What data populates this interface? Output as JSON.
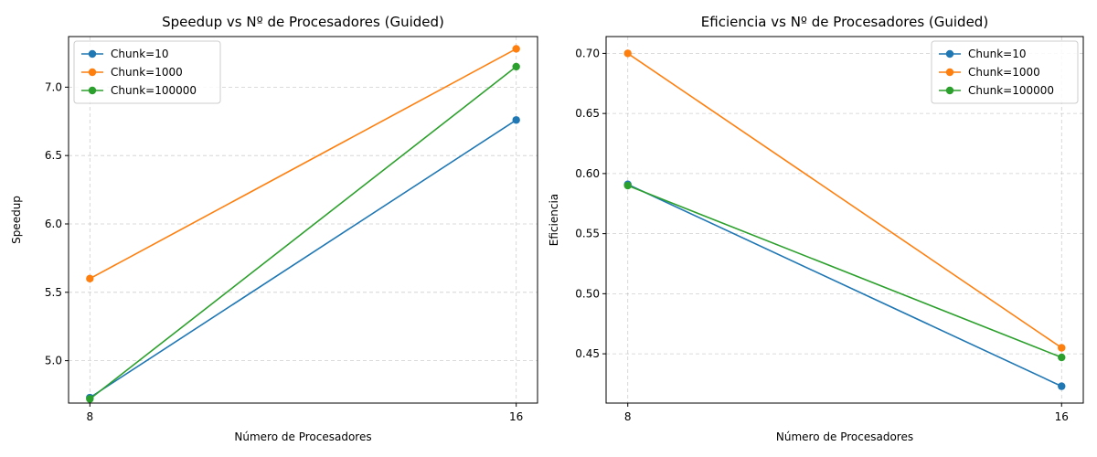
{
  "chart_data": [
    {
      "type": "line",
      "title": "Speedup vs Nº de Procesadores (Guided)",
      "xlabel": "Número de Procesadores",
      "ylabel": "Speedup",
      "x": [
        8,
        16
      ],
      "x_tick_labels": [
        "8",
        "16"
      ],
      "xlim": [
        7.6,
        16.4
      ],
      "ylim": [
        4.69,
        7.37
      ],
      "y_ticks": [
        5.0,
        5.5,
        6.0,
        6.5,
        7.0
      ],
      "y_tick_labels": [
        "5.0",
        "5.5",
        "6.0",
        "6.5",
        "7.0"
      ],
      "grid": true,
      "legend_position": "top-left",
      "series": [
        {
          "name": "Chunk=10",
          "values": [
            4.73,
            6.76
          ],
          "color": "#1f77b4"
        },
        {
          "name": "Chunk=1000",
          "values": [
            5.6,
            7.28
          ],
          "color": "#ff7f0e"
        },
        {
          "name": "Chunk=100000",
          "values": [
            4.72,
            7.15
          ],
          "color": "#2ca02c"
        }
      ]
    },
    {
      "type": "line",
      "title": "Eficiencia vs Nº de Procesadores (Guided)",
      "xlabel": "Número de Procesadores",
      "ylabel": "Eficiencia",
      "x": [
        8,
        16
      ],
      "x_tick_labels": [
        "8",
        "16"
      ],
      "xlim": [
        7.6,
        16.4
      ],
      "ylim": [
        0.409,
        0.714
      ],
      "y_ticks": [
        0.45,
        0.5,
        0.55,
        0.6,
        0.65,
        0.7
      ],
      "y_tick_labels": [
        "0.45",
        "0.50",
        "0.55",
        "0.60",
        "0.65",
        "0.70"
      ],
      "grid": true,
      "legend_position": "top-right",
      "series": [
        {
          "name": "Chunk=10",
          "values": [
            0.591,
            0.423
          ],
          "color": "#1f77b4"
        },
        {
          "name": "Chunk=1000",
          "values": [
            0.7,
            0.455
          ],
          "color": "#ff7f0e"
        },
        {
          "name": "Chunk=100000",
          "values": [
            0.59,
            0.447
          ],
          "color": "#2ca02c"
        }
      ]
    }
  ]
}
